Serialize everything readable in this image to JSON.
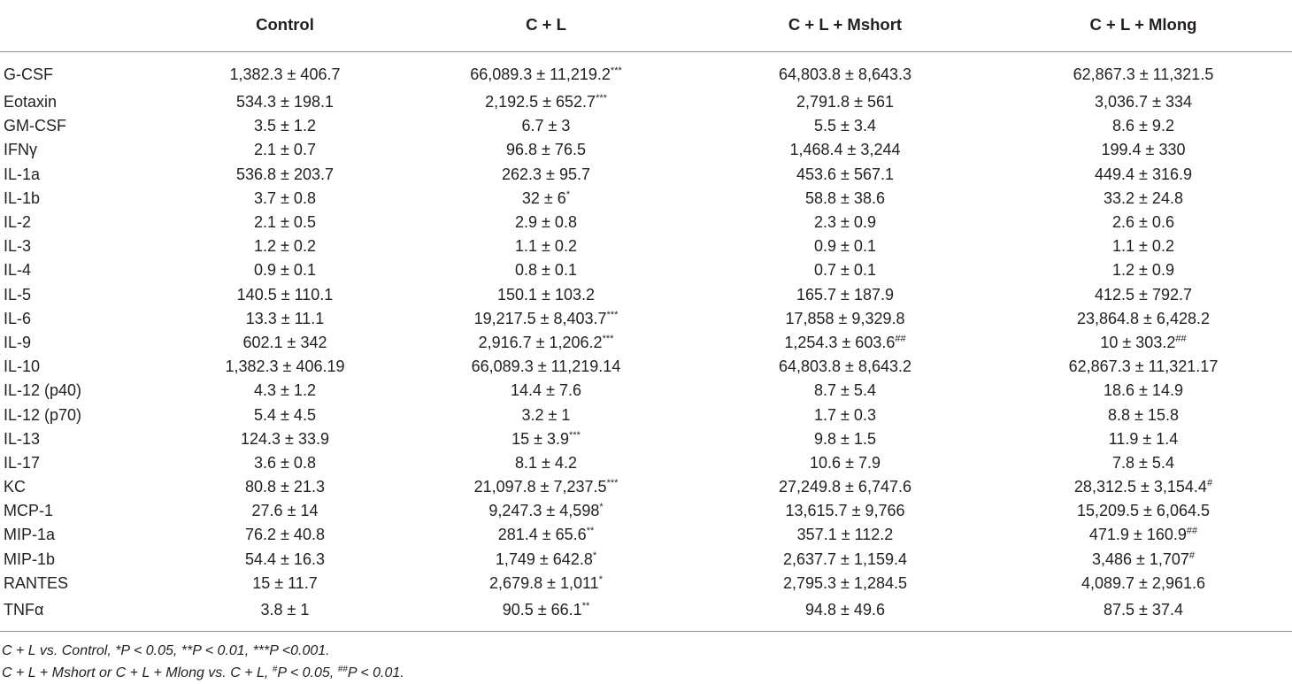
{
  "table": {
    "columns": [
      "",
      "Control",
      "C + L",
      "C + L + Mshort",
      "C + L + Mlong"
    ],
    "rows": [
      {
        "label": "G-CSF",
        "cells": [
          {
            "value": "1,382.3 ± 406.7",
            "mark": ""
          },
          {
            "value": "66,089.3 ± 11,219.2",
            "mark": "***"
          },
          {
            "value": "64,803.8 ± 8,643.3",
            "mark": ""
          },
          {
            "value": "62,867.3 ± 11,321.5",
            "mark": ""
          }
        ]
      },
      {
        "label": "Eotaxin",
        "cells": [
          {
            "value": "534.3 ± 198.1",
            "mark": ""
          },
          {
            "value": "2,192.5 ± 652.7",
            "mark": "***"
          },
          {
            "value": "2,791.8 ± 561",
            "mark": ""
          },
          {
            "value": "3,036.7 ± 334",
            "mark": ""
          }
        ]
      },
      {
        "label": "GM-CSF",
        "cells": [
          {
            "value": "3.5 ± 1.2",
            "mark": ""
          },
          {
            "value": "6.7 ± 3",
            "mark": ""
          },
          {
            "value": "5.5 ± 3.4",
            "mark": ""
          },
          {
            "value": "8.6 ± 9.2",
            "mark": ""
          }
        ]
      },
      {
        "label": "IFNγ",
        "cells": [
          {
            "value": "2.1 ± 0.7",
            "mark": ""
          },
          {
            "value": "96.8 ± 76.5",
            "mark": ""
          },
          {
            "value": "1,468.4 ± 3,244",
            "mark": ""
          },
          {
            "value": "199.4 ± 330",
            "mark": ""
          }
        ]
      },
      {
        "label": "IL-1a",
        "cells": [
          {
            "value": "536.8 ± 203.7",
            "mark": ""
          },
          {
            "value": "262.3 ± 95.7",
            "mark": ""
          },
          {
            "value": "453.6 ± 567.1",
            "mark": ""
          },
          {
            "value": "449.4 ± 316.9",
            "mark": ""
          }
        ]
      },
      {
        "label": "IL-1b",
        "cells": [
          {
            "value": "3.7 ± 0.8",
            "mark": ""
          },
          {
            "value": "32 ± 6",
            "mark": "*"
          },
          {
            "value": "58.8 ± 38.6",
            "mark": ""
          },
          {
            "value": "33.2 ± 24.8",
            "mark": ""
          }
        ]
      },
      {
        "label": "IL-2",
        "cells": [
          {
            "value": "2.1 ± 0.5",
            "mark": ""
          },
          {
            "value": "2.9 ± 0.8",
            "mark": ""
          },
          {
            "value": "2.3 ± 0.9",
            "mark": ""
          },
          {
            "value": "2.6 ± 0.6",
            "mark": ""
          }
        ]
      },
      {
        "label": "IL-3",
        "cells": [
          {
            "value": "1.2 ± 0.2",
            "mark": ""
          },
          {
            "value": "1.1 ± 0.2",
            "mark": ""
          },
          {
            "value": "0.9 ± 0.1",
            "mark": ""
          },
          {
            "value": "1.1 ± 0.2",
            "mark": ""
          }
        ]
      },
      {
        "label": "IL-4",
        "cells": [
          {
            "value": "0.9 ± 0.1",
            "mark": ""
          },
          {
            "value": "0.8 ± 0.1",
            "mark": ""
          },
          {
            "value": "0.7 ± 0.1",
            "mark": ""
          },
          {
            "value": "1.2 ± 0.9",
            "mark": ""
          }
        ]
      },
      {
        "label": "IL-5",
        "cells": [
          {
            "value": "140.5 ± 110.1",
            "mark": ""
          },
          {
            "value": "150.1 ± 103.2",
            "mark": ""
          },
          {
            "value": "165.7 ± 187.9",
            "mark": ""
          },
          {
            "value": "412.5 ± 792.7",
            "mark": ""
          }
        ]
      },
      {
        "label": "IL-6",
        "cells": [
          {
            "value": "13.3 ± 11.1",
            "mark": ""
          },
          {
            "value": "19,217.5 ± 8,403.7",
            "mark": "***"
          },
          {
            "value": "17,858 ± 9,329.8",
            "mark": ""
          },
          {
            "value": "23,864.8 ± 6,428.2",
            "mark": ""
          }
        ]
      },
      {
        "label": "IL-9",
        "cells": [
          {
            "value": "602.1 ± 342",
            "mark": ""
          },
          {
            "value": "2,916.7 ± 1,206.2",
            "mark": "***"
          },
          {
            "value": "1,254.3 ± 603.6",
            "mark": "##"
          },
          {
            "value": "10 ± 303.2",
            "mark": "##"
          }
        ]
      },
      {
        "label": "IL-10",
        "cells": [
          {
            "value": "1,382.3 ± 406.19",
            "mark": ""
          },
          {
            "value": "66,089.3 ± 11,219.14",
            "mark": ""
          },
          {
            "value": "64,803.8 ± 8,643.2",
            "mark": ""
          },
          {
            "value": "62,867.3 ± 11,321.17",
            "mark": ""
          }
        ]
      },
      {
        "label": "IL-12 (p40)",
        "cells": [
          {
            "value": "4.3 ± 1.2",
            "mark": ""
          },
          {
            "value": "14.4 ± 7.6",
            "mark": ""
          },
          {
            "value": "8.7 ± 5.4",
            "mark": ""
          },
          {
            "value": "18.6 ± 14.9",
            "mark": ""
          }
        ]
      },
      {
        "label": "IL-12 (p70)",
        "cells": [
          {
            "value": "5.4 ± 4.5",
            "mark": ""
          },
          {
            "value": "3.2 ± 1",
            "mark": ""
          },
          {
            "value": "1.7 ± 0.3",
            "mark": ""
          },
          {
            "value": "8.8 ± 15.8",
            "mark": ""
          }
        ]
      },
      {
        "label": "IL-13",
        "cells": [
          {
            "value": "124.3 ± 33.9",
            "mark": ""
          },
          {
            "value": "15 ± 3.9",
            "mark": "***"
          },
          {
            "value": "9.8 ± 1.5",
            "mark": ""
          },
          {
            "value": "11.9 ± 1.4",
            "mark": ""
          }
        ]
      },
      {
        "label": "IL-17",
        "cells": [
          {
            "value": "3.6 ± 0.8",
            "mark": ""
          },
          {
            "value": "8.1 ± 4.2",
            "mark": ""
          },
          {
            "value": "10.6 ± 7.9",
            "mark": ""
          },
          {
            "value": "7.8 ± 5.4",
            "mark": ""
          }
        ]
      },
      {
        "label": "KC",
        "cells": [
          {
            "value": "80.8 ± 21.3",
            "mark": ""
          },
          {
            "value": "21,097.8 ± 7,237.5",
            "mark": "***"
          },
          {
            "value": "27,249.8 ± 6,747.6",
            "mark": ""
          },
          {
            "value": "28,312.5 ± 3,154.4",
            "mark": "#"
          }
        ]
      },
      {
        "label": "MCP-1",
        "cells": [
          {
            "value": "27.6 ± 14",
            "mark": ""
          },
          {
            "value": "9,247.3 ± 4,598",
            "mark": "*"
          },
          {
            "value": "13,615.7 ± 9,766",
            "mark": ""
          },
          {
            "value": "15,209.5 ± 6,064.5",
            "mark": ""
          }
        ]
      },
      {
        "label": "MIP-1a",
        "cells": [
          {
            "value": "76.2 ± 40.8",
            "mark": ""
          },
          {
            "value": "281.4 ± 65.6",
            "mark": "**"
          },
          {
            "value": "357.1 ± 112.2",
            "mark": ""
          },
          {
            "value": "471.9 ± 160.9",
            "mark": "##"
          }
        ]
      },
      {
        "label": "MIP-1b",
        "cells": [
          {
            "value": "54.4 ± 16.3",
            "mark": ""
          },
          {
            "value": "1,749 ± 642.8",
            "mark": "*"
          },
          {
            "value": "2,637.7 ± 1,159.4",
            "mark": ""
          },
          {
            "value": "3,486 ± 1,707",
            "mark": "#"
          }
        ]
      },
      {
        "label": "RANTES",
        "cells": [
          {
            "value": "15 ± 11.7",
            "mark": ""
          },
          {
            "value": "2,679.8 ± 1,011",
            "mark": "*"
          },
          {
            "value": "2,795.3 ± 1,284.5",
            "mark": ""
          },
          {
            "value": "4,089.7 ± 2,961.6",
            "mark": ""
          }
        ]
      },
      {
        "label": "TNFα",
        "cells": [
          {
            "value": "3.8 ± 1",
            "mark": ""
          },
          {
            "value": "90.5 ± 66.1",
            "mark": "**"
          },
          {
            "value": "94.8 ± 49.6",
            "mark": ""
          },
          {
            "value": "87.5 ± 37.4",
            "mark": ""
          }
        ]
      }
    ]
  },
  "footnotes": {
    "line1": {
      "prefix": "C + L vs. Control, ",
      "parts": [
        "*P < 0.05, ",
        "**P < 0.01, ",
        "***P <0.001."
      ]
    },
    "line2": {
      "prefix": "C + L + Mshort or C + L + Mlong vs. C + L, ",
      "mark1": "#",
      "text1": "P < 0.05, ",
      "mark2": "##",
      "text2": "P < 0.01."
    }
  }
}
